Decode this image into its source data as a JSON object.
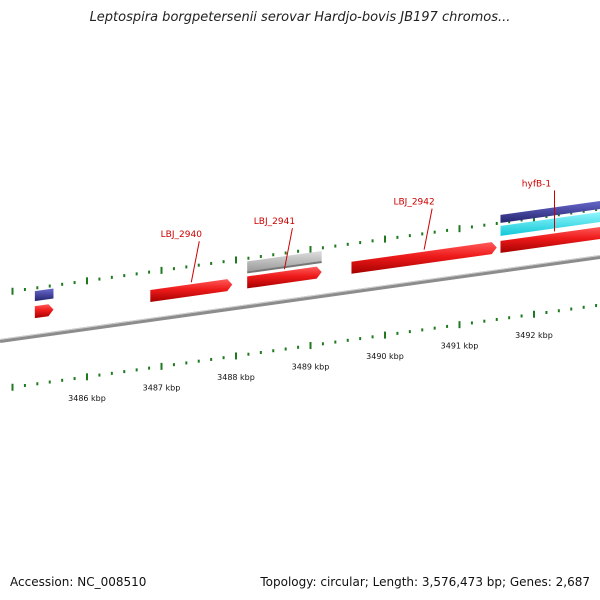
{
  "title": "Leptospira borgpetersenii serovar Hardjo-bovis JB197 chromos...",
  "footer": {
    "accession": "Accession: NC_008510",
    "stats": "Topology: circular; Length: 3,576,473 bp; Genes: 2,687"
  },
  "colors": {
    "backbone": "#8c8c8c",
    "gene_red": "#e8101a",
    "gene_grey": "#c0c0c0",
    "gene_navy": "#3a3aa0",
    "gene_cyan": "#20e6f0",
    "tick_green": "#1f7a1f",
    "label_red": "#cc0000"
  },
  "genes": [
    {
      "name": "LBJ_2940",
      "color": "red",
      "lane": "forward",
      "start_kbp": 3486.85,
      "end_kbp": 3487.95,
      "labeled": true
    },
    {
      "name": "LBJ_2941",
      "color": "red",
      "lane": "forward",
      "start_kbp": 3488.15,
      "end_kbp": 3489.15,
      "labeled": true
    },
    {
      "name": "",
      "color": "grey",
      "lane": "upper",
      "start_kbp": 3488.15,
      "end_kbp": 3489.15,
      "labeled": false
    },
    {
      "name": "LBJ_2942",
      "color": "red",
      "lane": "forward",
      "start_kbp": 3489.55,
      "end_kbp": 3491.5,
      "labeled": true
    },
    {
      "name": "hyfB-1",
      "color": "red",
      "lane": "forward",
      "start_kbp": 3491.55,
      "end_kbp": 3493.0,
      "labeled": true
    },
    {
      "name": "",
      "color": "navy",
      "lane": "top",
      "start_kbp": 3491.55,
      "end_kbp": 3493.0,
      "labeled": false
    },
    {
      "name": "",
      "color": "cyan",
      "lane": "upper",
      "start_kbp": 3491.55,
      "end_kbp": 3493.0,
      "labeled": false
    },
    {
      "name": "",
      "color": "red",
      "lane": "forward",
      "start_kbp": 3485.3,
      "end_kbp": 3485.55,
      "labeled": false
    },
    {
      "name": "",
      "color": "navy",
      "lane": "upper",
      "start_kbp": 3485.3,
      "end_kbp": 3485.55,
      "labeled": false
    }
  ],
  "kbp_labels": [
    {
      "text": "3486 kbp",
      "kbp": 3486
    },
    {
      "text": "3487 kbp",
      "kbp": 3487
    },
    {
      "text": "3488 kbp",
      "kbp": 3488
    },
    {
      "text": "3489 kbp",
      "kbp": 3489
    },
    {
      "text": "3490 kbp",
      "kbp": 3490
    },
    {
      "text": "3491 kbp",
      "kbp": 3491
    },
    {
      "text": "3492 kbp",
      "kbp": 3492
    }
  ]
}
